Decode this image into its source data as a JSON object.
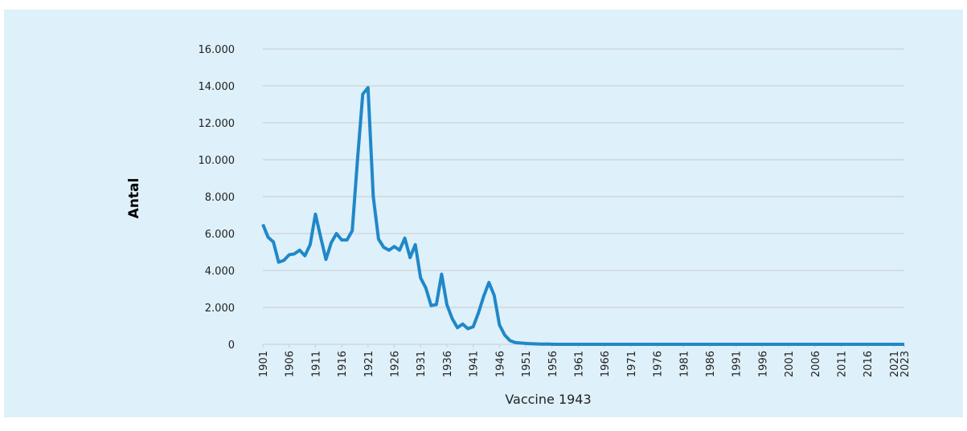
{
  "chart_data": {
    "type": "line",
    "y_label": "Antal",
    "x_label": "Vaccine 1943",
    "x": [
      1901,
      1902,
      1903,
      1904,
      1905,
      1906,
      1907,
      1908,
      1909,
      1910,
      1911,
      1912,
      1913,
      1914,
      1915,
      1916,
      1917,
      1918,
      1919,
      1920,
      1921,
      1922,
      1923,
      1924,
      1925,
      1926,
      1927,
      1928,
      1929,
      1930,
      1931,
      1932,
      1933,
      1934,
      1935,
      1936,
      1937,
      1938,
      1939,
      1940,
      1941,
      1942,
      1943,
      1944,
      1945,
      1946,
      1947,
      1948,
      1949,
      1950,
      1951,
      1952,
      1953,
      1954,
      1955,
      1956,
      1957,
      1958,
      1959,
      1960,
      1961,
      1962,
      1963,
      1964,
      1965,
      1966,
      1967,
      1968,
      1969,
      1970,
      1971,
      1972,
      1973,
      1974,
      1975,
      1976,
      1977,
      1978,
      1979,
      1980,
      1981,
      1982,
      1983,
      1984,
      1985,
      1986,
      1987,
      1988,
      1989,
      1990,
      1991,
      1992,
      1993,
      1994,
      1995,
      1996,
      1997,
      1998,
      1999,
      2000,
      2001,
      2002,
      2003,
      2004,
      2005,
      2006,
      2007,
      2008,
      2009,
      2010,
      2011,
      2012,
      2013,
      2014,
      2015,
      2016,
      2017,
      2018,
      2019,
      2020,
      2021,
      2022,
      2023
    ],
    "series": [
      {
        "color": "#1f88c9",
        "values": [
          6500,
          5800,
          5550,
          4450,
          4550,
          4850,
          4900,
          5100,
          4800,
          5400,
          7050,
          5800,
          4600,
          5500,
          6000,
          5650,
          5650,
          6150,
          10000,
          13550,
          13900,
          8000,
          5700,
          5250,
          5100,
          5300,
          5100,
          5750,
          4700,
          5400,
          3600,
          3050,
          2100,
          2150,
          3800,
          2150,
          1400,
          900,
          1100,
          850,
          950,
          1700,
          2600,
          3350,
          2650,
          1050,
          500,
          200,
          100,
          70,
          50,
          30,
          20,
          10,
          15,
          5,
          0,
          0,
          0,
          0,
          0,
          0,
          0,
          0,
          0,
          0,
          0,
          0,
          0,
          0,
          0,
          0,
          0,
          0,
          0,
          0,
          0,
          0,
          0,
          0,
          0,
          0,
          0,
          0,
          0,
          0,
          0,
          0,
          0,
          0,
          0,
          0,
          0,
          0,
          0,
          0,
          0,
          0,
          0,
          0,
          0,
          0,
          0,
          0,
          0,
          0,
          0,
          0,
          0,
          0,
          0,
          0,
          0,
          0,
          0,
          0,
          0,
          0,
          0,
          0,
          0,
          0,
          0
        ]
      }
    ],
    "xlim": [
      1901,
      2023
    ],
    "xticks": [
      1901,
      1906,
      1911,
      1916,
      1921,
      1926,
      1931,
      1936,
      1941,
      1946,
      1951,
      1956,
      1961,
      1966,
      1971,
      1976,
      1981,
      1986,
      1991,
      1996,
      2001,
      2006,
      2011,
      2016,
      2021,
      2023
    ],
    "ylim": [
      0,
      16000
    ],
    "yticks": [
      0,
      {
        "value": 2000,
        "label": "2.000"
      },
      {
        "value": 4000,
        "label": "4.000"
      },
      {
        "value": 6000,
        "label": "6.000"
      },
      {
        "value": 8000,
        "label": "8.000"
      },
      {
        "value": 10000,
        "label": "10.000"
      },
      {
        "value": 12000,
        "label": "12.000"
      },
      {
        "value": 14000,
        "label": "14.000"
      },
      {
        "value": 16000,
        "label": "16.000"
      }
    ],
    "grid": true
  }
}
